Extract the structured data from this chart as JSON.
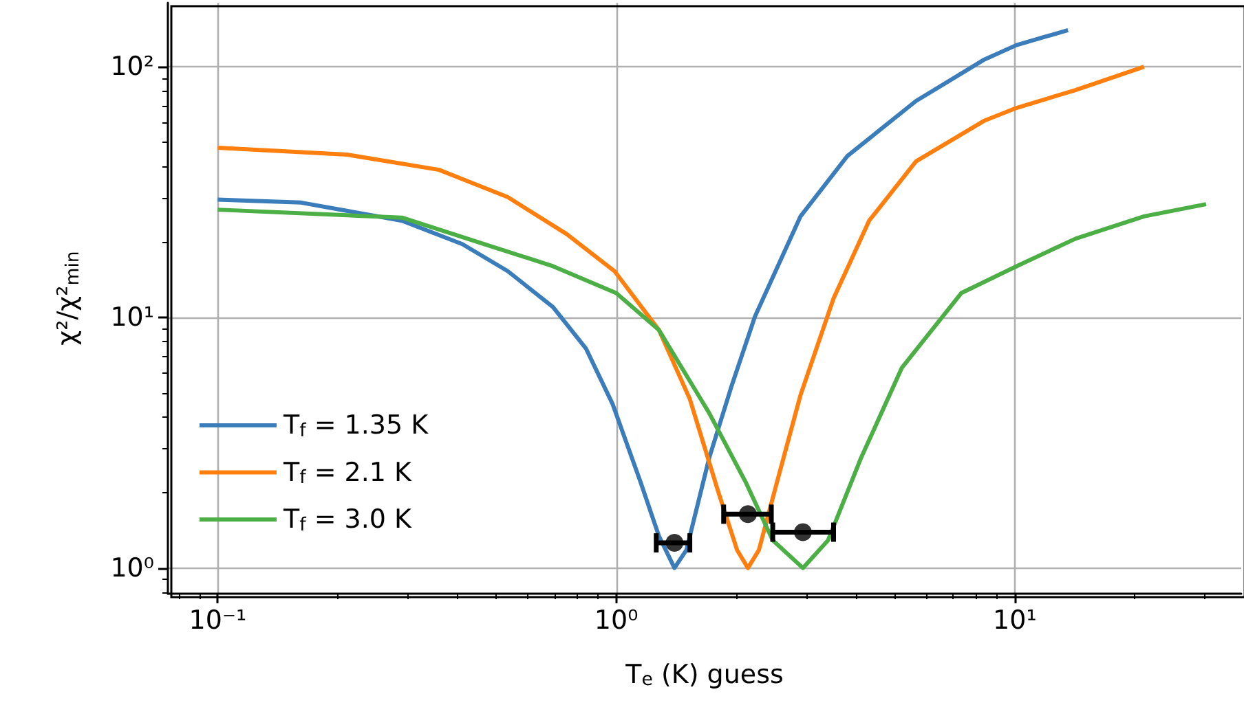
{
  "chart_data": {
    "type": "line",
    "xlabel": "T$_{e}$ (K) guess",
    "ylabel": "χ²/χ²$_{min}$",
    "log": "xy",
    "grid": true,
    "legend": "bottom left",
    "marker": "none",
    "line_style": "solid",
    "xlim": [
      0.075,
      37
    ],
    "ylim": [
      0.79,
      180
    ],
    "xticks": [
      {
        "value": 0.1,
        "label": "10⁻¹"
      },
      {
        "value": 1,
        "label": "10⁰"
      },
      {
        "value": 10,
        "label": "10¹"
      }
    ],
    "yticks": [
      {
        "value": 1,
        "label": "10⁰"
      },
      {
        "value": 10,
        "label": "10¹"
      },
      {
        "value": 100,
        "label": "10²"
      }
    ],
    "series": [
      {
        "name": "T$_{f}$ = 1.35 K",
        "color": "#3a7dba",
        "x": [
          0.1,
          0.162,
          0.29,
          0.411,
          0.534,
          0.694,
          0.84,
          0.98,
          1.15,
          1.28,
          1.4,
          1.5,
          1.71,
          1.95,
          2.23,
          2.9,
          3.8,
          5.65,
          8.4,
          10.1,
          13.6
        ],
        "values": [
          29.5,
          28.7,
          24.3,
          19.6,
          15.3,
          11.0,
          7.5,
          4.5,
          2.21,
          1.34,
          1.0,
          1.18,
          2.74,
          5.36,
          10.1,
          25.3,
          44,
          73,
          107,
          122,
          140
        ]
      },
      {
        "name": "T$_{f}$ = 2.1 K",
        "color": "#ff7f0e",
        "x": [
          0.1,
          0.211,
          0.359,
          0.534,
          0.751,
          0.99,
          1.28,
          1.53,
          1.8,
          2.01,
          2.14,
          2.28,
          2.55,
          2.9,
          3.51,
          4.31,
          5.65,
          8.4,
          10.1,
          14.2,
          21.1
        ],
        "values": [
          47.5,
          44.6,
          38.8,
          30.2,
          21.5,
          15.3,
          8.9,
          4.72,
          2.03,
          1.18,
          1.0,
          1.18,
          2.3,
          4.9,
          11.9,
          24.3,
          41.9,
          61,
          68.5,
          80.7,
          100
        ]
      },
      {
        "name": "T$_{f}$ = 3.0 K",
        "color": "#4caf45",
        "x": [
          0.1,
          0.29,
          0.467,
          0.694,
          1.0,
          1.28,
          1.71,
          2.11,
          2.47,
          2.94,
          3.4,
          4.11,
          5.21,
          7.34,
          10.1,
          14.2,
          21.1,
          30.2
        ],
        "values": [
          26.9,
          25.0,
          19.6,
          16.0,
          12.5,
          8.9,
          4.16,
          2.21,
          1.29,
          1.0,
          1.29,
          2.74,
          6.3,
          12.5,
          16.0,
          20.6,
          25.3,
          28.3
        ]
      },
      {
        "type": "scatter",
        "color": "#000000",
        "marker": "circle",
        "x": [
          1.4,
          2.14,
          2.94
        ],
        "values": [
          1.26,
          1.64,
          1.39
        ],
        "xerrors": [
          [
            1.26,
            1.53
          ],
          [
            1.86,
            2.45
          ],
          [
            2.47,
            3.51
          ]
        ]
      }
    ]
  }
}
